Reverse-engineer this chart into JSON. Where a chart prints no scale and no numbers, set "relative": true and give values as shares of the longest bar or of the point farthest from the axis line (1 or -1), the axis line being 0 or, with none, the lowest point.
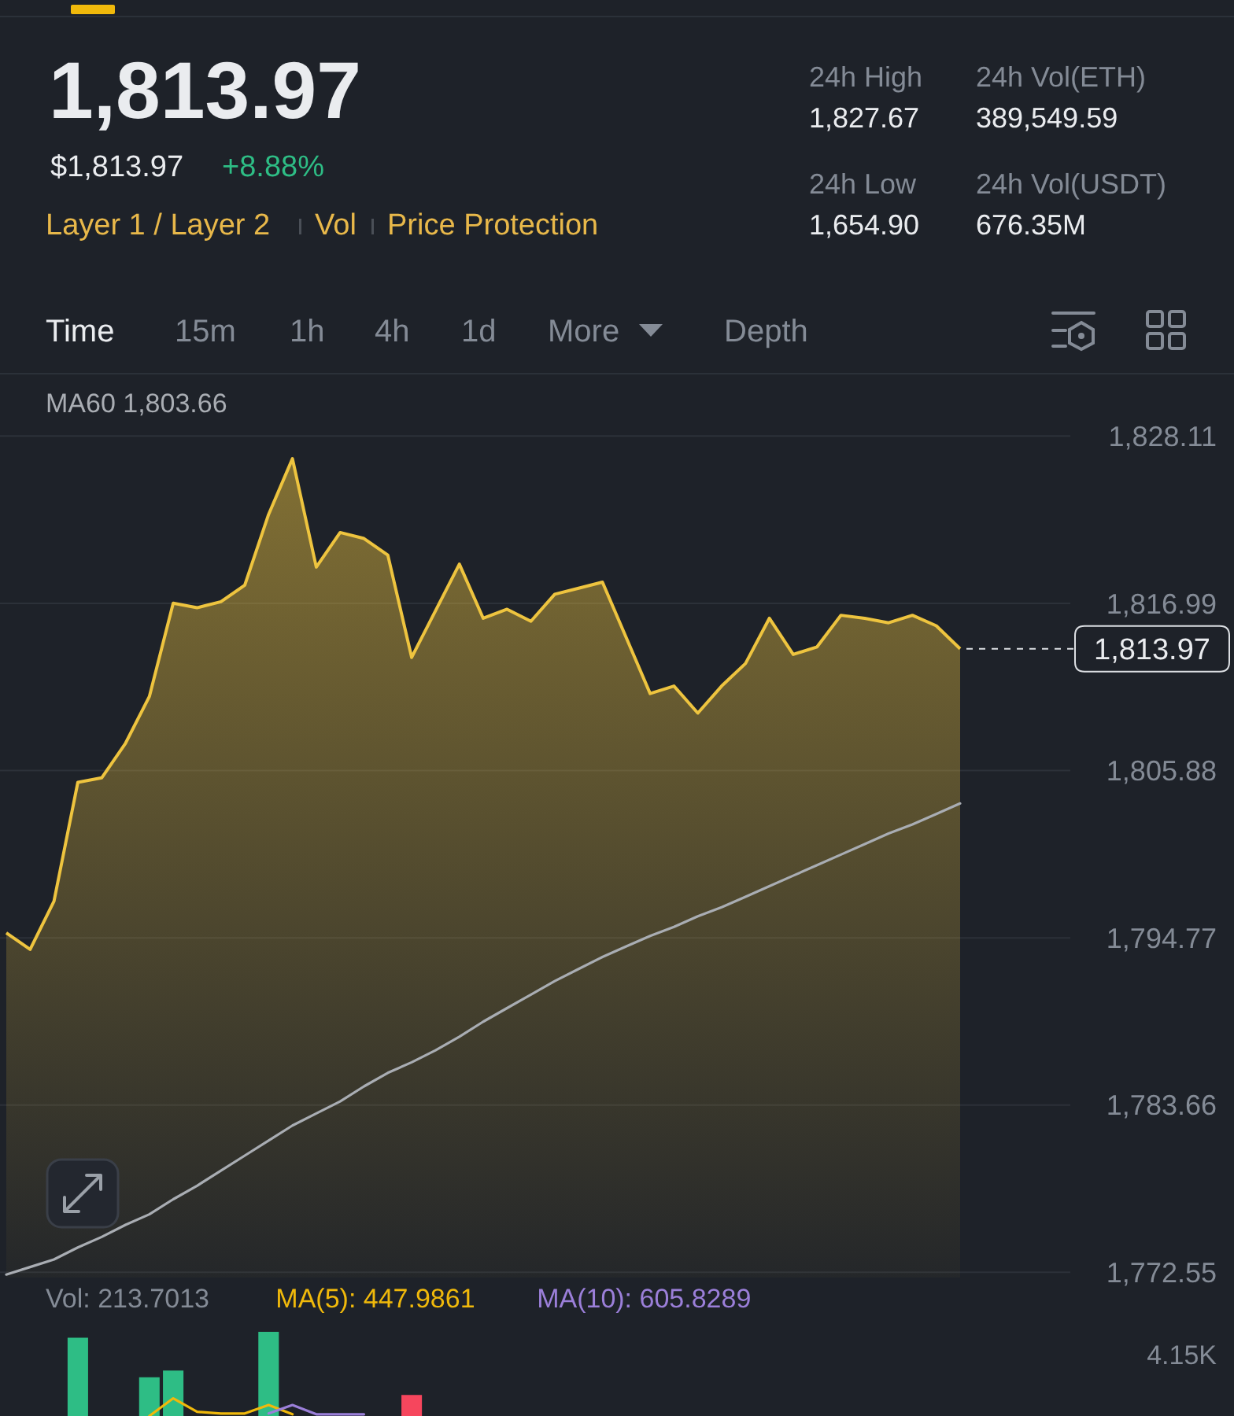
{
  "chart_data": [
    {
      "type": "area",
      "title": "1,813.97",
      "subtitle": "$1,813.97",
      "annotations": [
        "+8.88%",
        "Layer 1 / Layer 2",
        "Vol",
        "Price Protection",
        "24h High",
        "1,827.67",
        "24h Vol(ETH)",
        "389,549.59",
        "24h Low",
        "1,654.90",
        "24h Vol(USDT)",
        "676.35M",
        "Time",
        "15m",
        "1h",
        "4h",
        "1d",
        "More",
        "Depth"
      ],
      "categories": [
        null,
        null,
        null,
        null,
        null,
        null,
        null,
        null,
        null,
        null,
        null,
        null,
        null,
        null,
        null,
        null,
        null,
        null,
        null,
        null,
        null,
        null,
        null,
        null,
        null,
        null,
        null,
        null,
        null,
        null,
        null,
        null,
        null,
        null,
        null,
        null,
        null,
        null,
        null,
        null,
        null
      ],
      "series": [
        {
          "color": "#eec43f",
          "values": [
            1795.1,
            1794.0,
            1797.2,
            1805.1,
            1805.4,
            1807.7,
            1810.8,
            1817.0,
            1816.7,
            1817.1,
            1818.2,
            1822.9,
            1826.6,
            1819.4,
            1821.7,
            1821.3,
            1820.2,
            1813.4,
            1816.5,
            1819.6,
            1816.0,
            1816.6,
            1815.8,
            1817.6,
            1818.0,
            1818.4,
            1814.7,
            1811.0,
            1811.5,
            1809.7,
            1811.5,
            1813.0,
            1816.0,
            1813.6,
            1814.1,
            1816.2,
            1816.0,
            1815.7,
            1816.2,
            1815.5,
            1813.97
          ],
          "value_labels": [
            null,
            null,
            null,
            null,
            null,
            null,
            null,
            null,
            null,
            null,
            null,
            null,
            null,
            null,
            null,
            null,
            null,
            null,
            null,
            null,
            null,
            null,
            null,
            null,
            null,
            null,
            null,
            null,
            null,
            null,
            null,
            null,
            null,
            null,
            null,
            null,
            null,
            null,
            null,
            null,
            "1,813.97"
          ]
        },
        {
          "name": "MA60 1,803.66",
          "type": "line",
          "color": "#a9adb3",
          "values": [
            1772.4,
            1772.9,
            1773.4,
            1774.2,
            1774.9,
            1775.7,
            1776.4,
            1777.4,
            1778.3,
            1779.3,
            1780.3,
            1781.3,
            1782.3,
            1783.1,
            1783.9,
            1784.9,
            1785.8,
            1786.5,
            1787.3,
            1788.2,
            1789.2,
            1790.1,
            1791.0,
            1791.9,
            1792.7,
            1793.5,
            1794.2,
            1794.9,
            1795.5,
            1796.2,
            1796.8,
            1797.5,
            1798.2,
            1798.9,
            1799.6,
            1800.3,
            1801.0,
            1801.7,
            1802.3,
            1803.0,
            1803.7
          ]
        }
      ],
      "ylim": [
        1772.2,
        1832.2
      ],
      "yticks": [
        {
          "value": 1772.55,
          "label": "1,772.55"
        },
        {
          "value": 1783.66,
          "label": "1,783.66"
        },
        {
          "value": 1794.77,
          "label": "1,794.77"
        },
        {
          "value": 1805.88,
          "label": "1,805.88"
        },
        {
          "value": 1816.99,
          "label": "1,816.99"
        },
        {
          "value": 1828.11,
          "label": "1,828.11"
        }
      ],
      "grid": "y",
      "legend": "top left"
    },
    {
      "type": "bar",
      "relative": true,
      "legend": "top left",
      "annotations": [
        "4.15K"
      ],
      "categories": [
        null,
        null,
        null,
        null,
        null,
        null,
        null,
        null,
        null,
        null,
        null,
        null,
        null,
        null,
        null,
        null,
        null,
        null,
        null,
        null,
        null,
        null,
        null,
        null,
        null,
        null,
        null,
        null,
        null,
        null,
        null,
        null,
        null,
        null,
        null,
        null,
        null,
        null,
        null,
        null,
        null
      ],
      "series": [
        {
          "name": "Vol: 213.7013",
          "values": [
            null,
            null,
            null,
            0.93,
            null,
            null,
            0.46,
            0.54,
            null,
            null,
            null,
            1,
            null,
            null,
            null,
            null,
            null,
            0.25,
            null,
            null,
            null,
            null,
            null,
            null,
            null,
            null,
            null,
            null,
            null,
            null,
            null,
            null,
            null,
            null,
            null,
            null,
            null,
            null,
            null,
            null,
            null
          ],
          "colors": [
            null,
            null,
            null,
            "#2ebd85",
            null,
            null,
            "#2ebd85",
            "#2ebd85",
            null,
            null,
            null,
            "#2ebd85",
            null,
            null,
            null,
            null,
            null,
            "#f6465d",
            null,
            null,
            null,
            null,
            null,
            null,
            null,
            null,
            null,
            null,
            null,
            null,
            null,
            null,
            null,
            null,
            null,
            null,
            null,
            null,
            null,
            null,
            null
          ]
        },
        {
          "name": "MA(5): 447.9861",
          "type": "line",
          "color": "#f0b90b",
          "values": [
            null,
            null,
            null,
            null,
            null,
            null,
            0,
            0.21,
            0.05,
            0.03,
            0.03,
            0.13,
            0.02,
            null,
            null,
            null,
            null,
            null,
            null,
            null,
            null,
            null,
            null,
            null,
            null,
            null,
            null,
            null,
            null,
            null,
            null,
            null,
            null,
            null,
            null,
            null,
            null,
            null,
            null,
            null,
            null
          ]
        },
        {
          "name": "MA(10): 605.8289",
          "type": "line",
          "color": "#9b7fd9",
          "values": [
            null,
            null,
            null,
            null,
            null,
            null,
            null,
            null,
            null,
            null,
            null,
            0.03,
            0.13,
            0.02,
            0.02,
            0.02,
            null,
            null,
            null,
            null,
            null,
            null,
            null,
            null,
            null,
            null,
            null,
            null,
            null,
            null,
            null,
            null,
            null,
            null,
            null,
            null,
            null,
            null,
            null,
            null,
            null
          ]
        }
      ]
    }
  ]
}
